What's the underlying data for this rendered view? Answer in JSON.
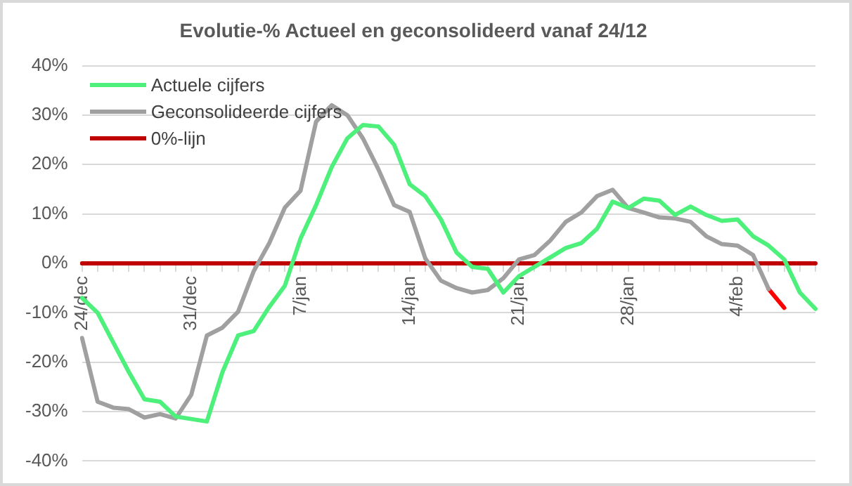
{
  "chart_data": {
    "type": "line",
    "title": "Evolutie-% Actueel en geconsolideerd vanaf 24/12",
    "categories": [
      "24/dec",
      null,
      null,
      null,
      null,
      null,
      null,
      "31/dec",
      null,
      null,
      null,
      null,
      null,
      null,
      "7/jan",
      null,
      null,
      null,
      null,
      null,
      null,
      "14/jan",
      null,
      null,
      null,
      null,
      null,
      null,
      "21/jan",
      null,
      null,
      null,
      null,
      null,
      null,
      "28/jan",
      null,
      null,
      null,
      null,
      null,
      null,
      "4/feb",
      null,
      null,
      null,
      null,
      null
    ],
    "series": [
      {
        "name": "Actuele cijfers",
        "color": "#4cf07a",
        "values": [
          -7,
          -10,
          -16,
          -22,
          -27.5,
          -28,
          -31,
          -31.5,
          -32,
          -22,
          -14.6,
          -13.7,
          -8.8,
          -4.5,
          5,
          11.8,
          19.5,
          25.3,
          28,
          27.7,
          24,
          16,
          13.6,
          8.9,
          2.2,
          -0.7,
          -1.1,
          -5.9,
          -2.6,
          -0.7,
          1.2,
          3.1,
          4.1,
          7,
          12.5,
          11.2,
          13.1,
          12.7,
          9.8,
          11.5,
          9.8,
          8.6,
          8.9,
          5.5,
          3.6,
          0.8,
          -5.9,
          -9.2
        ]
      },
      {
        "name": "Geconsolideerde cijfers",
        "color": "#a0a0a0",
        "values": [
          -15.1,
          -28,
          -29.2,
          -29.5,
          -31.2,
          -30.5,
          -31.4,
          -26.6,
          -14.6,
          -13,
          -9.8,
          -1.6,
          4.1,
          11.3,
          14.7,
          28.7,
          32,
          30,
          25.3,
          19,
          11.8,
          10.4,
          1,
          -3.5,
          -5,
          -5.9,
          -5.4,
          -3,
          0.8,
          1.7,
          4.6,
          8.4,
          10.3,
          13.6,
          14.9,
          11.2,
          10.3,
          9.3,
          9.1,
          8.4,
          5.5,
          3.9,
          3.6,
          1.7,
          -5.2,
          null,
          null,
          null
        ]
      },
      {
        "color": "#ff0000",
        "values": [
          null,
          null,
          null,
          null,
          null,
          null,
          null,
          null,
          null,
          null,
          null,
          null,
          null,
          null,
          null,
          null,
          null,
          null,
          null,
          null,
          null,
          null,
          null,
          null,
          null,
          null,
          null,
          null,
          null,
          null,
          null,
          null,
          null,
          null,
          null,
          null,
          null,
          null,
          null,
          null,
          null,
          null,
          null,
          null,
          -5.2,
          -9,
          null,
          null
        ]
      },
      {
        "name": "0%-lijn",
        "color": "#c00000",
        "values": [
          0,
          0,
          0,
          0,
          0,
          0,
          0,
          0,
          0,
          0,
          0,
          0,
          0,
          0,
          0,
          0,
          0,
          0,
          0,
          0,
          0,
          0,
          0,
          0,
          0,
          0,
          0,
          0,
          0,
          0,
          0,
          0,
          0,
          0,
          0,
          0,
          0,
          0,
          0,
          0,
          0,
          0,
          0,
          0,
          0,
          0,
          0,
          0
        ]
      }
    ],
    "ylim": [
      -40,
      40
    ],
    "yticks": [
      {
        "value": -40,
        "label": "-40%"
      },
      {
        "value": -30,
        "label": "-30%"
      },
      {
        "value": -20,
        "label": "-20%"
      },
      {
        "value": -10,
        "label": "-10%"
      },
      {
        "value": 0,
        "label": "0%"
      },
      {
        "value": 10,
        "label": "10%"
      },
      {
        "value": 20,
        "label": "20%"
      },
      {
        "value": 30,
        "label": "30%"
      },
      {
        "value": 40,
        "label": "40%"
      }
    ],
    "grid": "y",
    "legend": "top left",
    "marker": "none",
    "line_style": "solid"
  }
}
